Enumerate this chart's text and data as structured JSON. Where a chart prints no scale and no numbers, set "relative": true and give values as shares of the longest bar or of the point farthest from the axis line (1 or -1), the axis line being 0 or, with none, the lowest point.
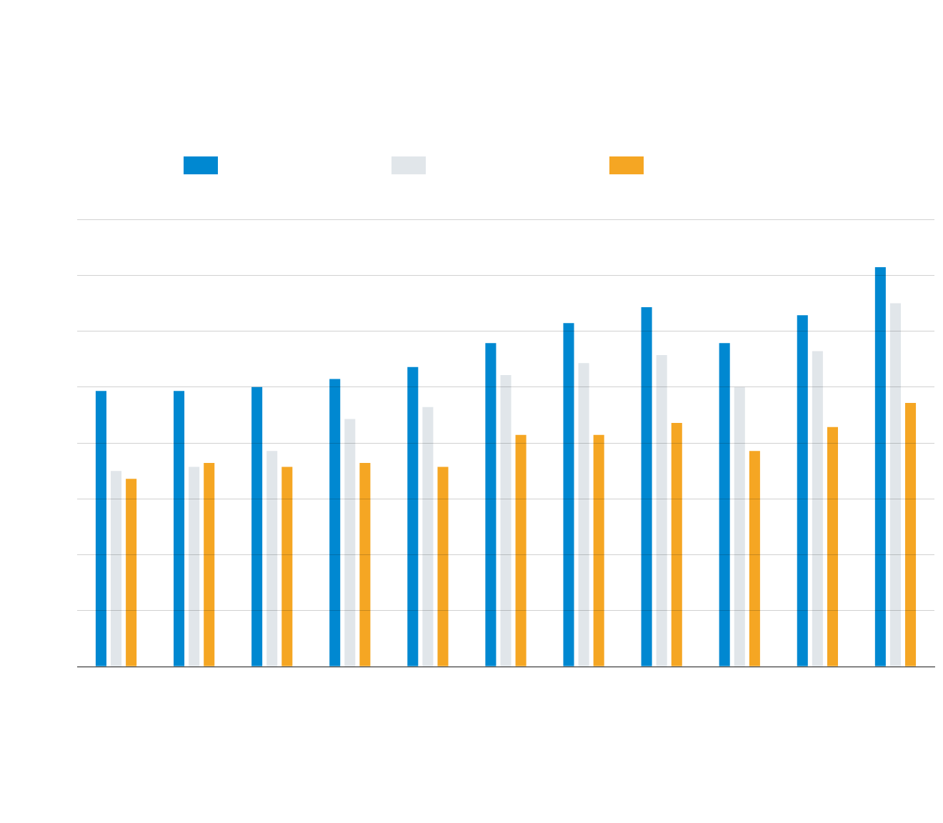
{
  "chart_data": {
    "type": "bar",
    "relative": true,
    "grid": "y",
    "categories": [
      null,
      null,
      null,
      null,
      null,
      null,
      null,
      null,
      null,
      null,
      null
    ],
    "series": [
      {
        "color": "#0088d1",
        "values": [
          0.69,
          0.69,
          0.7,
          0.72,
          0.75,
          0.81,
          0.86,
          0.9,
          0.81,
          0.88,
          1
        ]
      },
      {
        "color": "#e1e6ea",
        "values": [
          0.49,
          0.5,
          0.54,
          0.62,
          0.65,
          0.73,
          0.76,
          0.78,
          0.7,
          0.79,
          0.91
        ]
      },
      {
        "color": "#f5a623",
        "values": [
          0.47,
          0.51,
          0.5,
          0.51,
          0.5,
          0.58,
          0.58,
          0.61,
          0.54,
          0.6,
          0.66
        ]
      }
    ]
  }
}
